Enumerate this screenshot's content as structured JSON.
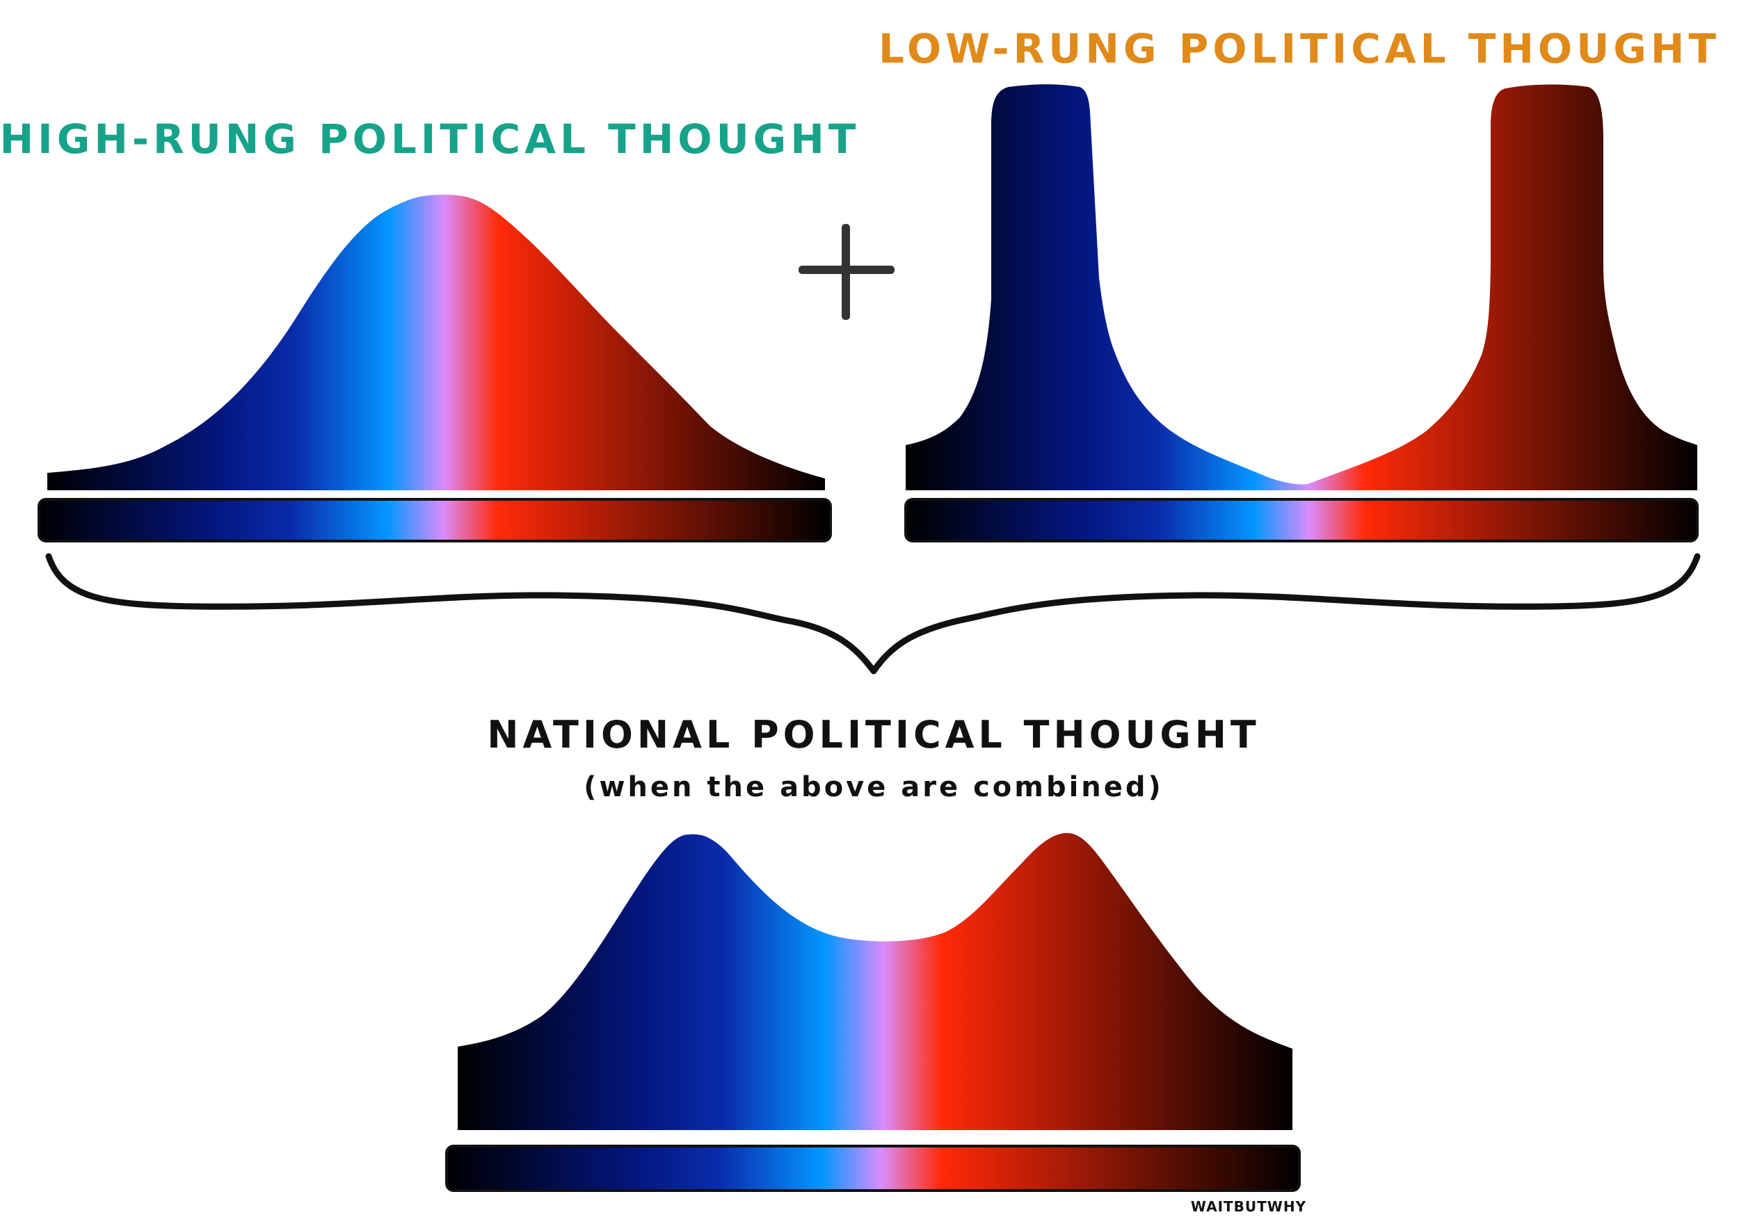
{
  "labels": {
    "high_rung": "HIGH-RUNG POLITICAL THOUGHT",
    "low_rung": "LOW-RUNG POLITICAL THOUGHT",
    "national": "NATIONAL POLITICAL THOUGHT",
    "national_sub": "(when the above are combined)",
    "plus": "+",
    "signature": "WAITBUTWHY"
  },
  "colors": {
    "high_rung_label": "#17a38a",
    "low_rung_label": "#e08a1a",
    "national_label": "#111111",
    "outline": "#111111",
    "spectrum": [
      "#000000",
      "#03167e",
      "#0a2cab",
      "#0496ff",
      "#d98cfc",
      "#ff2a08",
      "#9c1a06",
      "#000000"
    ]
  }
}
